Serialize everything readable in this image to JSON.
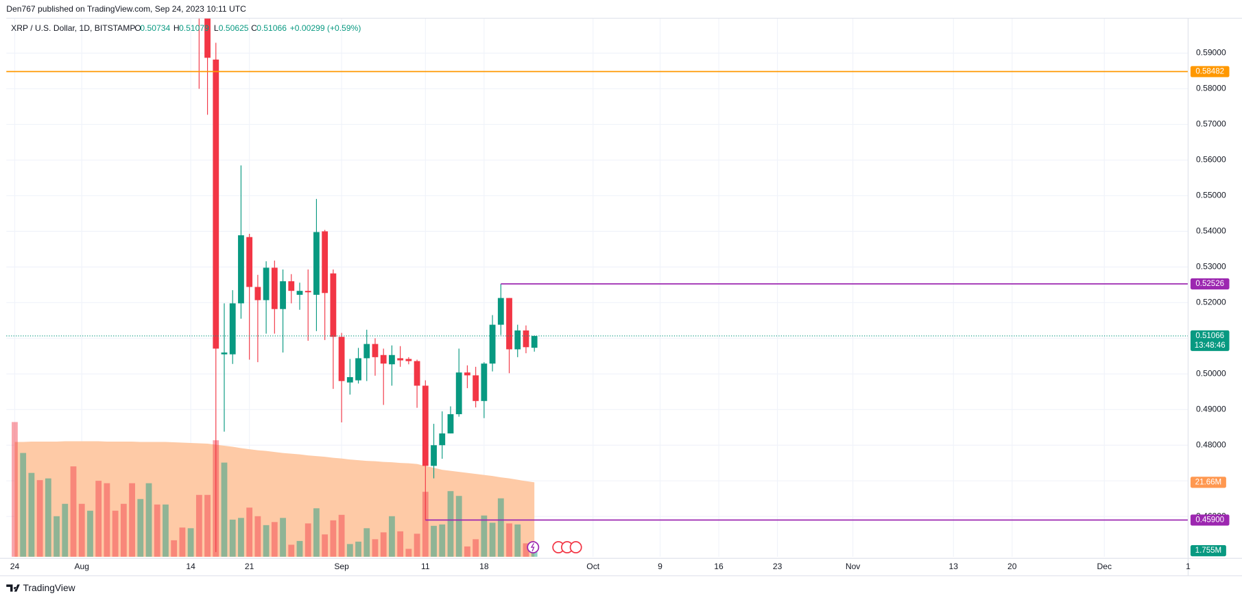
{
  "header": {
    "publisher": "Den767 published on TradingView.com, Sep 24, 2023 10:11 UTC",
    "symbol": "XRP / U.S. Dollar, 1D, BITSTAMP",
    "o_label": "O",
    "o": 0.50734,
    "h_label": "H",
    "h": 0.51079,
    "l_label": "L",
    "l": 0.50625,
    "c_label": "C",
    "c": 0.51066,
    "change": "+0.00299 (+0.59%)"
  },
  "footer": {
    "brand": "TradingView"
  },
  "chart_data": {
    "type": "candlestick",
    "x": [
      "2023-07-24",
      "2023-07-25",
      "2023-07-26",
      "2023-07-27",
      "2023-07-28",
      "2023-07-29",
      "2023-07-30",
      "2023-07-31",
      "2023-08-01",
      "2023-08-02",
      "2023-08-03",
      "2023-08-04",
      "2023-08-05",
      "2023-08-06",
      "2023-08-07",
      "2023-08-08",
      "2023-08-09",
      "2023-08-10",
      "2023-08-11",
      "2023-08-12",
      "2023-08-13",
      "2023-08-14",
      "2023-08-15",
      "2023-08-16",
      "2023-08-17",
      "2023-08-18",
      "2023-08-19",
      "2023-08-20",
      "2023-08-21",
      "2023-08-22",
      "2023-08-23",
      "2023-08-24",
      "2023-08-25",
      "2023-08-26",
      "2023-08-27",
      "2023-08-28",
      "2023-08-29",
      "2023-08-30",
      "2023-08-31",
      "2023-09-01",
      "2023-09-02",
      "2023-09-03",
      "2023-09-04",
      "2023-09-05",
      "2023-09-06",
      "2023-09-07",
      "2023-09-08",
      "2023-09-09",
      "2023-09-10",
      "2023-09-11",
      "2023-09-12",
      "2023-09-13",
      "2023-09-14",
      "2023-09-15",
      "2023-09-16",
      "2023-09-17",
      "2023-09-18",
      "2023-09-19",
      "2023-09-20",
      "2023-09-21",
      "2023-09-22",
      "2023-09-23",
      "2023-09-24"
    ],
    "open": [
      null,
      null,
      null,
      null,
      null,
      null,
      null,
      null,
      null,
      null,
      null,
      null,
      null,
      null,
      null,
      null,
      null,
      null,
      null,
      null,
      null,
      null,
      0.625,
      0.6,
      0.5882,
      0.5055,
      0.5055,
      0.5198,
      0.5384,
      0.5244,
      0.5207,
      0.5298,
      0.5182,
      0.526,
      0.5222,
      0.5233,
      0.5222,
      0.54,
      0.5282,
      0.5104,
      0.4976,
      0.4982,
      0.5044,
      0.5084,
      0.5053,
      0.5027,
      0.5044,
      0.5042,
      0.5036,
      0.4967,
      0.4742,
      0.48,
      0.4833,
      0.4887,
      0.5004,
      0.4996,
      0.4924,
      0.5029,
      0.5138,
      0.5213,
      0.5069,
      0.5122,
      0.50734
    ],
    "high": [
      null,
      null,
      null,
      null,
      null,
      null,
      null,
      null,
      null,
      null,
      null,
      null,
      null,
      null,
      null,
      null,
      null,
      null,
      null,
      null,
      null,
      null,
      0.63,
      0.605,
      0.5929,
      0.5198,
      0.5235,
      0.5585,
      0.5393,
      0.5278,
      0.5316,
      0.5318,
      0.5293,
      0.528,
      0.5256,
      0.5293,
      0.5491,
      0.5404,
      0.5293,
      0.5115,
      0.5042,
      0.5073,
      0.5124,
      0.51,
      0.5071,
      0.508,
      0.5078,
      0.5047,
      0.504,
      0.4982,
      0.486,
      0.4895,
      0.4909,
      0.5071,
      0.5024,
      0.502,
      0.5033,
      0.5165,
      0.52526,
      0.5213,
      0.5138,
      0.5136,
      0.51079
    ],
    "low": [
      null,
      null,
      null,
      null,
      null,
      null,
      null,
      null,
      null,
      null,
      null,
      null,
      null,
      null,
      null,
      null,
      null,
      null,
      null,
      null,
      null,
      null,
      0.58,
      0.5727,
      0.45,
      0.4838,
      0.5028,
      0.5155,
      0.504,
      0.5033,
      0.5113,
      0.5113,
      0.506,
      0.5198,
      0.518,
      0.5093,
      0.512,
      0.5095,
      0.4958,
      0.4864,
      0.4942,
      0.4973,
      0.498,
      0.4995,
      0.4913,
      0.4967,
      0.502,
      0.5027,
      0.4905,
      0.459,
      0.4707,
      0.4762,
      0.4833,
      0.488,
      0.496,
      0.4906,
      0.4876,
      0.5007,
      0.5109,
      0.5002,
      0.5047,
      0.5058,
      0.50625
    ],
    "close": [
      null,
      null,
      null,
      null,
      null,
      null,
      null,
      null,
      null,
      null,
      null,
      null,
      null,
      null,
      null,
      null,
      null,
      null,
      null,
      null,
      null,
      null,
      0.602,
      0.5887,
      0.5071,
      0.506,
      0.5198,
      0.5389,
      0.5244,
      0.5207,
      0.5298,
      0.5182,
      0.526,
      0.5233,
      0.5233,
      0.5229,
      0.5398,
      0.5227,
      0.5104,
      0.498,
      0.4991,
      0.5044,
      0.5084,
      0.5047,
      0.5029,
      0.5053,
      0.5038,
      0.5036,
      0.4967,
      0.4742,
      0.48,
      0.4833,
      0.4887,
      0.5004,
      0.4996,
      0.4924,
      0.5029,
      0.5138,
      0.5213,
      0.5069,
      0.5122,
      0.5075,
      0.51066
    ],
    "up_color": "#089981",
    "down_color": "#f23645",
    "volume": [
      39.2,
      30.2,
      24.4,
      22.3,
      22.8,
      11.8,
      15.4,
      26.3,
      15.4,
      13.4,
      22.1,
      21.4,
      13.4,
      15.4,
      21.4,
      16.8,
      21.4,
      15.2,
      15.2,
      4.8,
      8.5,
      8.3,
      18.0,
      18.0,
      33.9,
      27.4,
      10.8,
      11.3,
      14.3,
      11.8,
      9.2,
      10.1,
      11.3,
      3.5,
      4.6,
      9.7,
      14.1,
      6.5,
      10.6,
      12.2,
      3.7,
      4.4,
      8.3,
      5.1,
      7.1,
      11.8,
      7.4,
      2.3,
      6.7,
      18.9,
      9.0,
      9.4,
      19.1,
      17.7,
      3.0,
      5.1,
      12.0,
      9.9,
      17.0,
      9.7,
      9.4,
      3.9,
      1.755
    ],
    "volume_direction": [
      "down",
      "up",
      "up",
      "down",
      "up",
      "up",
      "up",
      "down",
      "down",
      "up",
      "down",
      "down",
      "down",
      "down",
      "down",
      "up",
      "up",
      "down",
      "up",
      "down",
      "down",
      "up",
      "down",
      "down",
      "down",
      "up",
      "up",
      "up",
      "down",
      "down",
      "up",
      "down",
      "up",
      "down",
      "up",
      "down",
      "up",
      "down",
      "down",
      "down",
      "up",
      "up",
      "up",
      "down",
      "down",
      "up",
      "down",
      "down",
      "down",
      "down",
      "up",
      "up",
      "up",
      "up",
      "down",
      "down",
      "up",
      "up",
      "up",
      "down",
      "up",
      "down",
      "up"
    ],
    "volume_ma": [
      33.4,
      33.4,
      33.5,
      33.5,
      33.5,
      33.5,
      33.6,
      33.6,
      33.6,
      33.6,
      33.6,
      33.5,
      33.5,
      33.5,
      33.5,
      33.4,
      33.4,
      33.4,
      33.4,
      33.3,
      33.2,
      33.1,
      33.0,
      32.9,
      32.6,
      32.3,
      32.0,
      31.6,
      31.3,
      31.0,
      30.8,
      30.5,
      30.2,
      30.0,
      29.8,
      29.5,
      29.3,
      29.1,
      28.8,
      28.6,
      28.3,
      28.1,
      27.9,
      27.8,
      27.6,
      27.5,
      27.3,
      27.2,
      27.0,
      26.4,
      25.9,
      25.3,
      25.0,
      24.7,
      24.4,
      24.1,
      23.8,
      23.5,
      23.1,
      22.8,
      22.4,
      22.0,
      21.66
    ],
    "volume_ma_color": "#fecaa6",
    "volume_lim": [
      0,
      156.7
    ],
    "xlim": [
      "2023-07-23",
      "2023-12-11"
    ],
    "xticks": [
      {
        "value": "2023-07-24",
        "label": "24"
      },
      {
        "value": "2023-08-01",
        "label": "Aug"
      },
      {
        "value": "2023-08-14",
        "label": "14"
      },
      {
        "value": "2023-08-21",
        "label": "21"
      },
      {
        "value": "2023-09-01",
        "label": "Sep"
      },
      {
        "value": "2023-09-11",
        "label": "11"
      },
      {
        "value": "2023-09-18",
        "label": "18"
      },
      {
        "value": "2023-10-01",
        "label": "Oct"
      },
      {
        "value": "2023-10-09",
        "label": "9"
      },
      {
        "value": "2023-10-16",
        "label": "16"
      },
      {
        "value": "2023-10-23",
        "label": "23"
      },
      {
        "value": "2023-11-01",
        "label": "Nov"
      },
      {
        "value": "2023-11-13",
        "label": "13"
      },
      {
        "value": "2023-11-20",
        "label": "20"
      },
      {
        "value": "2023-12-01",
        "label": "Dec"
      },
      {
        "value": "2023-12-11",
        "label": "1"
      }
    ],
    "ylim": [
      0.4487,
      0.5998
    ],
    "yticks": [
      {
        "value": 0.46,
        "label": "0.46000"
      },
      {
        "value": 0.47,
        "label": "0.47000"
      },
      {
        "value": 0.48,
        "label": "0.48000"
      },
      {
        "value": 0.49,
        "label": "0.49000"
      },
      {
        "value": 0.5,
        "label": "0.50000"
      },
      {
        "value": 0.51,
        "label": "0.51000"
      },
      {
        "value": 0.52,
        "label": "0.52000"
      },
      {
        "value": 0.53,
        "label": "0.53000"
      },
      {
        "value": 0.54,
        "label": "0.54000"
      },
      {
        "value": 0.55,
        "label": "0.55000"
      },
      {
        "value": 0.56,
        "label": "0.56000"
      },
      {
        "value": 0.57,
        "label": "0.57000"
      },
      {
        "value": 0.58,
        "label": "0.58000"
      },
      {
        "value": 0.59,
        "label": "0.59000"
      }
    ],
    "grid": true,
    "levels": [
      {
        "value": 0.58482,
        "label": "0.58482",
        "color": "#ff9800"
      },
      {
        "value": 0.52526,
        "label": "0.52526",
        "color": "#9c27b0",
        "from": "2023-09-20"
      },
      {
        "value": 0.459,
        "label": "0.45900",
        "color": "#9c27b0",
        "from": "2023-09-11"
      }
    ],
    "last": {
      "value": 0.51066,
      "label": "0.51066",
      "countdown": "13:48:46",
      "color": "#089981"
    },
    "volume_tags": [
      {
        "value": 21.66,
        "label": "21.66M",
        "color": "#ff9850"
      },
      {
        "value": 1.755,
        "label": "1.755M",
        "color": "#089981"
      }
    ]
  }
}
